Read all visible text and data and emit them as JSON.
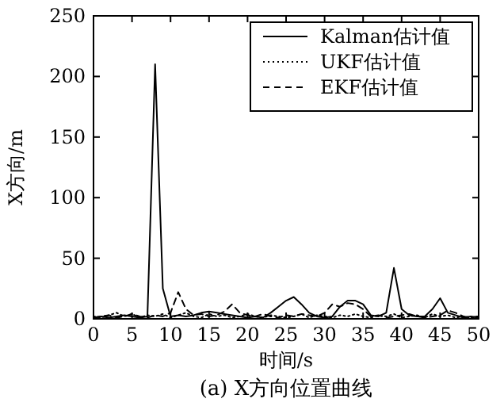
{
  "chart_data": {
    "type": "line",
    "title": "(a) X方向位置曲线",
    "xlabel": "时间/s",
    "ylabel": "X方向/m",
    "xlim": [
      0,
      50
    ],
    "ylim": [
      0,
      250
    ],
    "xticks": [
      0,
      5,
      10,
      15,
      20,
      25,
      30,
      35,
      40,
      45,
      50
    ],
    "yticks": [
      0,
      50,
      100,
      150,
      200,
      250
    ],
    "grid": false,
    "legend": "top right",
    "marker": "none",
    "x": [
      0,
      1,
      2,
      3,
      4,
      5,
      6,
      7,
      8,
      9,
      10,
      11,
      12,
      13,
      14,
      15,
      16,
      17,
      18,
      19,
      20,
      21,
      22,
      23,
      24,
      25,
      26,
      27,
      28,
      29,
      30,
      31,
      32,
      33,
      34,
      35,
      36,
      37,
      38,
      39,
      40,
      41,
      42,
      43,
      44,
      45,
      46,
      47,
      48,
      49,
      50
    ],
    "series": [
      {
        "name": "Kalman估计值",
        "color": "#000000",
        "line_style": "solid",
        "values": [
          1,
          2,
          1,
          2,
          3,
          2,
          1,
          2,
          210,
          25,
          2,
          3,
          2,
          3,
          5,
          6,
          5,
          4,
          3,
          2,
          1,
          2,
          1,
          5,
          10,
          15,
          18,
          12,
          5,
          2,
          1,
          2,
          10,
          15,
          15,
          12,
          3,
          2,
          5,
          42,
          8,
          3,
          2,
          2,
          8,
          17,
          5,
          3,
          1,
          2,
          1
        ]
      },
      {
        "name": "UKF估计值",
        "color": "#000000",
        "line_style": "dotted",
        "values": [
          2,
          1,
          3,
          5,
          2,
          4,
          1,
          3,
          2,
          4,
          1,
          3,
          5,
          2,
          1,
          4,
          2,
          3,
          1,
          2,
          4,
          2,
          1,
          3,
          2,
          1,
          2,
          4,
          1,
          3,
          2,
          1,
          3,
          2,
          4,
          2,
          1,
          3,
          2,
          4,
          1,
          2,
          3,
          1,
          4,
          2,
          3,
          1,
          2,
          1,
          2
        ]
      },
      {
        "name": "EKF估计值",
        "color": "#000000",
        "line_style": "dashed",
        "values": [
          1,
          2,
          3,
          1,
          2,
          4,
          2,
          1,
          3,
          2,
          5,
          22,
          8,
          3,
          4,
          2,
          3,
          6,
          12,
          5,
          3,
          2,
          4,
          2,
          1,
          3,
          2,
          4,
          3,
          2,
          5,
          12,
          10,
          13,
          12,
          8,
          2,
          3,
          1,
          2,
          3,
          4,
          2,
          1,
          2,
          3,
          7,
          5,
          2,
          1,
          2
        ]
      }
    ]
  }
}
